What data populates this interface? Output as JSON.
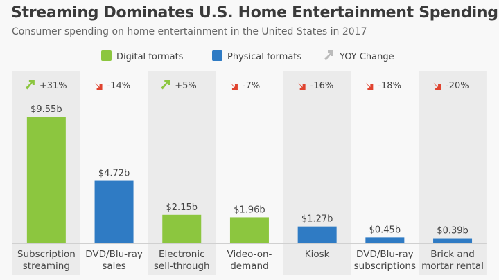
{
  "chart_data": {
    "type": "bar",
    "title": "Streaming Dominates U.S. Home Entertainment Spending",
    "subtitle": "Consumer spending on home entertainment in the United States in 2017",
    "legend": [
      {
        "label": "Digital formats",
        "color": "#8cc63f"
      },
      {
        "label": "Physical formats",
        "color": "#2f7bc4"
      },
      {
        "label": "YOY Change",
        "color": "#bbbbbb"
      }
    ],
    "legend_placement": "top-center",
    "categories": [
      [
        "Subscription",
        "streaming"
      ],
      [
        "DVD/Blu-ray",
        "sales"
      ],
      [
        "Electronic",
        "sell-through"
      ],
      [
        "Video-on-",
        "demand"
      ],
      [
        "Kiosk"
      ],
      [
        "DVD/Blu-ray",
        "subscriptions"
      ],
      [
        "Brick and",
        "mortar rental"
      ]
    ],
    "values": [
      9.55,
      4.72,
      2.15,
      1.96,
      1.27,
      0.45,
      0.39
    ],
    "value_labels": [
      "$9.55b",
      "$4.72b",
      "$2.15b",
      "$1.96b",
      "$1.27b",
      "$0.45b",
      "$0.39b"
    ],
    "format": [
      "digital",
      "physical",
      "digital",
      "digital",
      "physical",
      "physical",
      "physical"
    ],
    "yoy_change": [
      31,
      -14,
      5,
      -7,
      -16,
      -18,
      -20
    ],
    "yoy_labels": [
      "+31%",
      "-14%",
      "+5%",
      "-7%",
      "-16%",
      "-18%",
      "-20%"
    ],
    "colors": {
      "digital": "#8cc63f",
      "physical": "#2f7bc4",
      "up": "#8cc63f",
      "down": "#e0432f"
    },
    "ylim": [
      0,
      10
    ]
  }
}
